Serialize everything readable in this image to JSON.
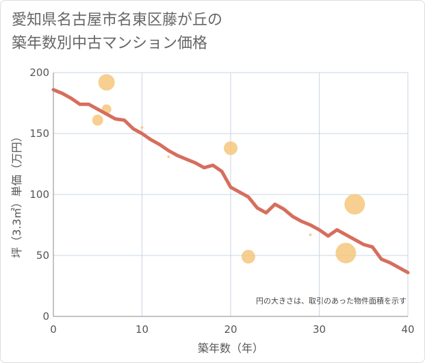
{
  "title_lines": [
    "愛知県名古屋市名東区藤が丘の",
    "築年数別中古マンション価格"
  ],
  "colors": {
    "line": "#d66e5d",
    "bubble": "#f5c77e",
    "grid": "#c9d5e3",
    "axis": "#888888",
    "title": "#666666"
  },
  "chart_data": {
    "type": "scatter",
    "title": "愛知県名古屋市名東区藤が丘の築年数別中古マンション価格",
    "xlabel": "築年数（年）",
    "ylabel": "坪（3.3㎡）単価（万円）",
    "xlim": [
      0,
      40
    ],
    "ylim": [
      0,
      200
    ],
    "x_ticks": [
      0,
      10,
      20,
      30,
      40
    ],
    "y_ticks": [
      0,
      50,
      100,
      150,
      200
    ],
    "grid": true,
    "note": "円の大きさは、取引のあった物件面積を示す",
    "line": {
      "x": [
        0,
        1,
        2,
        3,
        4,
        5,
        6,
        7,
        8,
        9,
        10,
        11,
        12,
        13,
        14,
        15,
        16,
        17,
        18,
        19,
        20,
        21,
        22,
        23,
        24,
        25,
        26,
        27,
        28,
        29,
        30,
        31,
        32,
        33,
        34,
        35,
        36,
        37,
        38,
        39,
        40
      ],
      "y": [
        186,
        183,
        179,
        174,
        174,
        170,
        166,
        162,
        161,
        154,
        150,
        145,
        141,
        136,
        132,
        129,
        126,
        122,
        124,
        119,
        106,
        102,
        98,
        89,
        85,
        92,
        88,
        82,
        78,
        75,
        71,
        66,
        71,
        67,
        63,
        59,
        57,
        47,
        44,
        40,
        36
      ]
    },
    "bubbles": {
      "x": [
        5,
        6,
        6,
        10,
        13,
        20,
        22,
        29,
        33,
        34
      ],
      "y": [
        161,
        170,
        192,
        155,
        131,
        138,
        49,
        67,
        52,
        92
      ],
      "size": [
        8,
        7,
        12,
        2,
        2,
        10,
        10,
        2,
        15,
        15
      ]
    }
  }
}
